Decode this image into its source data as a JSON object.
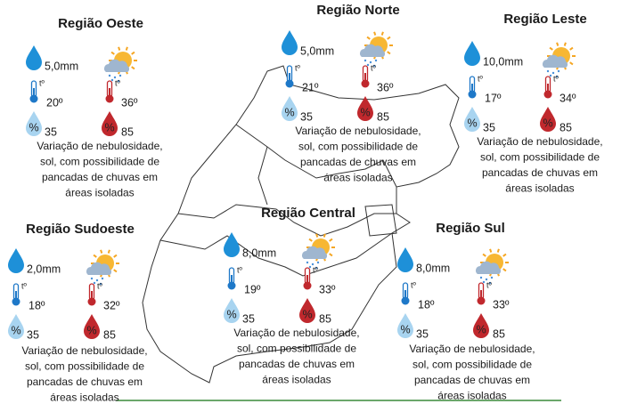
{
  "icons": {
    "thermometer": "tº",
    "humidity": "%"
  },
  "regions": [
    {
      "name": "Região Oeste",
      "rain": "5,0mm",
      "temp_min": "20º",
      "temp_max": "36º",
      "humidity_min": "35",
      "humidity_max": "85",
      "description": [
        "Variação de nebulosidade,",
        "sol, com possibilidade de",
        "pancadas de chuvas em",
        "áreas isoladas"
      ]
    },
    {
      "name": "Região Norte",
      "rain": "5,0mm",
      "temp_min": "21º",
      "temp_max": "36º",
      "humidity_min": "35",
      "humidity_max": "85",
      "description": [
        "Variação de nebulosidade,",
        "sol, com possibilidade de",
        "pancadas de chuvas em",
        "áreas isoladas"
      ]
    },
    {
      "name": "Região Leste",
      "rain": "10,0mm",
      "temp_min": "17º",
      "temp_max": "34º",
      "humidity_min": "35",
      "humidity_max": "85",
      "description": [
        "Variação de nebulosidade,",
        "sol, com possibilidade de",
        "pancadas de chuvas em",
        "áreas isoladas"
      ]
    },
    {
      "name": "Região Sudoeste",
      "rain": "2,0mm",
      "temp_min": "18º",
      "temp_max": "32º",
      "humidity_min": "35",
      "humidity_max": "85",
      "description": [
        "Variação de nebulosidade,",
        "sol, com possibilidade de",
        "pancadas de chuvas em",
        "áreas isoladas"
      ]
    },
    {
      "name": "Região Central",
      "rain": "8,0mm",
      "temp_min": "19º",
      "temp_max": "33º",
      "humidity_min": "35",
      "humidity_max": "85",
      "description": [
        "Variação de nebulosidade,",
        "sol, com possibilidade de",
        "pancadas de chuvas em",
        "áreas isoladas"
      ]
    },
    {
      "name": "Região Sul",
      "rain": "8,0mm",
      "temp_min": "18º",
      "temp_max": "33º",
      "humidity_min": "35",
      "humidity_max": "85",
      "description": [
        "Variação de nebulosidade,",
        "sol, com possibilidade de",
        "pancadas de chuvas em",
        "áreas isoladas"
      ]
    }
  ]
}
